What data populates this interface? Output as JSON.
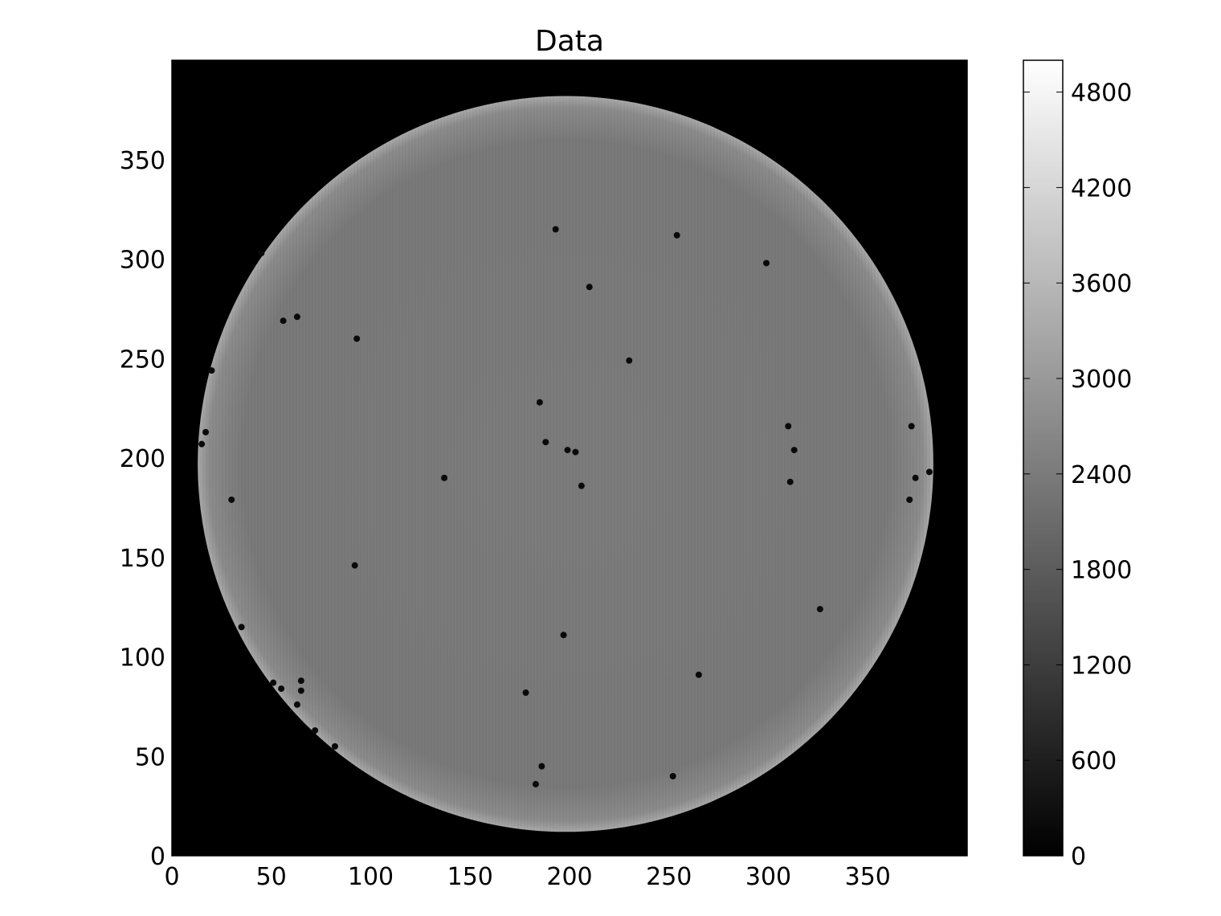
{
  "chart_data": {
    "type": "heatmap",
    "title": "Data",
    "xlabel": "",
    "ylabel": "",
    "xlim": [
      0,
      400
    ],
    "ylim": [
      0,
      400
    ],
    "x_ticks": [
      0,
      50,
      100,
      150,
      200,
      250,
      300,
      350
    ],
    "y_ticks": [
      0,
      50,
      100,
      150,
      200,
      250,
      300,
      350
    ],
    "colormap": "gray",
    "colorbar": {
      "vmin": 0,
      "vmax": 5000,
      "ticks": [
        0,
        600,
        1200,
        1800,
        2400,
        3000,
        3600,
        4200,
        4800
      ]
    },
    "disk": {
      "center": [
        198,
        197
      ],
      "radius": 185,
      "interior_value": 2500,
      "rim_value": 3300,
      "background_value": 0
    },
    "dark_spots": [
      {
        "x": 193,
        "y": 315
      },
      {
        "x": 254,
        "y": 312
      },
      {
        "x": 299,
        "y": 298
      },
      {
        "x": 210,
        "y": 286
      },
      {
        "x": 56,
        "y": 269
      },
      {
        "x": 63,
        "y": 271
      },
      {
        "x": 93,
        "y": 260
      },
      {
        "x": 230,
        "y": 249
      },
      {
        "x": 185,
        "y": 228
      },
      {
        "x": 310,
        "y": 216
      },
      {
        "x": 372,
        "y": 216
      },
      {
        "x": 188,
        "y": 208
      },
      {
        "x": 199,
        "y": 204
      },
      {
        "x": 203,
        "y": 203
      },
      {
        "x": 313,
        "y": 204
      },
      {
        "x": 137,
        "y": 190
      },
      {
        "x": 311,
        "y": 188
      },
      {
        "x": 374,
        "y": 190
      },
      {
        "x": 381,
        "y": 193
      },
      {
        "x": 206,
        "y": 186
      },
      {
        "x": 30,
        "y": 179
      },
      {
        "x": 371,
        "y": 179
      },
      {
        "x": 92,
        "y": 146
      },
      {
        "x": 326,
        "y": 124
      },
      {
        "x": 35,
        "y": 115
      },
      {
        "x": 197,
        "y": 111
      },
      {
        "x": 265,
        "y": 91
      },
      {
        "x": 51,
        "y": 87
      },
      {
        "x": 55,
        "y": 84
      },
      {
        "x": 65,
        "y": 88
      },
      {
        "x": 65,
        "y": 83
      },
      {
        "x": 63,
        "y": 76
      },
      {
        "x": 72,
        "y": 63
      },
      {
        "x": 82,
        "y": 55
      },
      {
        "x": 178,
        "y": 82
      },
      {
        "x": 186,
        "y": 45
      },
      {
        "x": 252,
        "y": 40
      },
      {
        "x": 183,
        "y": 36
      },
      {
        "x": 17,
        "y": 213
      },
      {
        "x": 15,
        "y": 207
      },
      {
        "x": 20,
        "y": 244
      },
      {
        "x": 45,
        "y": 303
      }
    ]
  }
}
